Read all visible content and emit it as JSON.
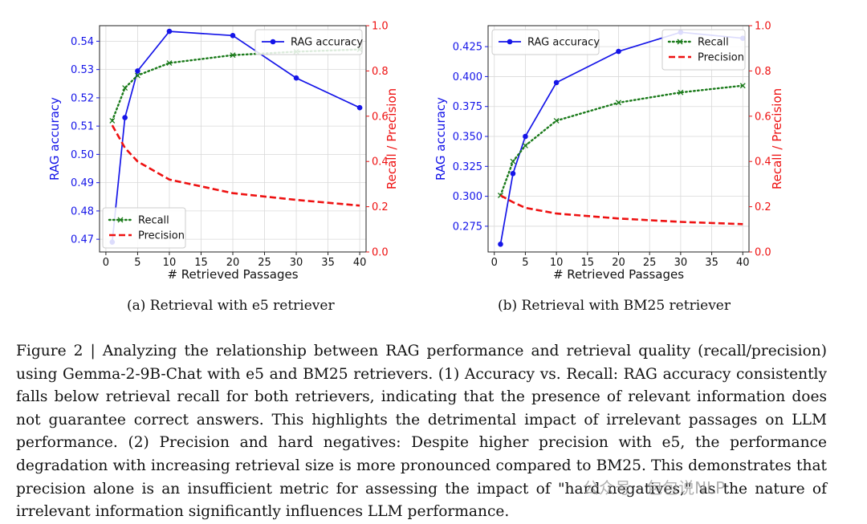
{
  "colors": {
    "acc": "#1515e8",
    "recall": "#1a7a1a",
    "precision": "#ee1111",
    "axis": "#222222"
  },
  "chart_data": [
    {
      "id": "e5",
      "type": "line",
      "subcaption": "(a)  Retrieval with e5 retriever",
      "xlabel": "# Retrieved Passages",
      "ylabel_left": "RAG accuracy",
      "ylabel_right": "Recall / Precision",
      "x_ticks": [
        0,
        5,
        10,
        15,
        20,
        25,
        30,
        35,
        40
      ],
      "x_ticks_text": [
        "0",
        "5",
        "10",
        "15",
        "20",
        "25",
        "30",
        "35",
        "40"
      ],
      "xlim": [
        -1,
        41
      ],
      "ylim_left": [
        0.4655,
        0.5455
      ],
      "y_ticks_left": [
        0.47,
        0.48,
        0.49,
        0.5,
        0.51,
        0.52,
        0.53,
        0.54
      ],
      "y_ticks_left_text": [
        "0.47",
        "0.48",
        "0.49",
        "0.50",
        "0.51",
        "0.52",
        "0.53",
        "0.54"
      ],
      "ylim_right": [
        0,
        1
      ],
      "y_ticks_right": [
        0,
        0.2,
        0.4,
        0.6,
        0.8,
        1.0
      ],
      "y_ticks_right_text": [
        "0.0",
        "0.2",
        "0.4",
        "0.6",
        "0.8",
        "1.0"
      ],
      "legend_left": {
        "position": "upper right",
        "entries": [
          "RAG accuracy"
        ]
      },
      "legend_right": {
        "position": "lower left",
        "entries": [
          "Recall",
          "Precision"
        ]
      },
      "series": [
        {
          "name": "RAG accuracy",
          "axis": "left",
          "style": "solid-dot",
          "x": [
            1,
            3,
            5,
            10,
            20,
            30,
            40
          ],
          "values": [
            0.469,
            0.513,
            0.5295,
            0.5435,
            0.542,
            0.527,
            0.5165
          ]
        },
        {
          "name": "Recall",
          "axis": "right",
          "style": "dotted-x",
          "x": [
            1,
            3,
            5,
            10,
            20,
            30,
            40
          ],
          "values": [
            0.58,
            0.725,
            0.78,
            0.835,
            0.87,
            0.885,
            0.895
          ]
        },
        {
          "name": "Precision",
          "axis": "right",
          "style": "dashed",
          "x": [
            1,
            3,
            5,
            10,
            20,
            30,
            40
          ],
          "values": [
            0.56,
            0.46,
            0.4,
            0.32,
            0.26,
            0.23,
            0.205
          ]
        }
      ]
    },
    {
      "id": "bm25",
      "type": "line",
      "subcaption": "(b)  Retrieval with BM25 retriever",
      "xlabel": "# Retrieved Passages",
      "ylabel_left": "RAG accuracy",
      "ylabel_right": "Recall / Precision",
      "x_ticks": [
        0,
        5,
        10,
        15,
        20,
        25,
        30,
        35,
        40
      ],
      "x_ticks_text": [
        "0",
        "5",
        "10",
        "15",
        "20",
        "25",
        "30",
        "35",
        "40"
      ],
      "xlim": [
        -1,
        41
      ],
      "ylim_left": [
        0.2535,
        0.4425
      ],
      "y_ticks_left": [
        0.275,
        0.3,
        0.325,
        0.35,
        0.375,
        0.4,
        0.425
      ],
      "y_ticks_left_text": [
        "0.275",
        "0.300",
        "0.325",
        "0.350",
        "0.375",
        "0.400",
        "0.425"
      ],
      "ylim_right": [
        0,
        1
      ],
      "y_ticks_right": [
        0,
        0.2,
        0.4,
        0.6,
        0.8,
        1.0
      ],
      "y_ticks_right_text": [
        "0.0",
        "0.2",
        "0.4",
        "0.6",
        "0.8",
        "1.0"
      ],
      "legend_left": {
        "position": "upper left",
        "entries": [
          "RAG accuracy"
        ]
      },
      "legend_right": {
        "position": "upper right",
        "entries": [
          "Recall",
          "Precision"
        ]
      },
      "series": [
        {
          "name": "RAG accuracy",
          "axis": "left",
          "style": "solid-dot",
          "x": [
            1,
            3,
            5,
            10,
            20,
            30,
            40
          ],
          "values": [
            0.26,
            0.319,
            0.35,
            0.395,
            0.421,
            0.437,
            0.432
          ]
        },
        {
          "name": "Recall",
          "axis": "right",
          "style": "dotted-x",
          "x": [
            1,
            3,
            5,
            10,
            20,
            30,
            40
          ],
          "values": [
            0.25,
            0.4,
            0.47,
            0.58,
            0.66,
            0.705,
            0.735
          ]
        },
        {
          "name": "Precision",
          "axis": "right",
          "style": "dashed",
          "x": [
            1,
            3,
            5,
            10,
            20,
            30,
            40
          ],
          "values": [
            0.25,
            0.22,
            0.195,
            0.17,
            0.148,
            0.133,
            0.123
          ]
        }
      ]
    }
  ],
  "caption": {
    "label": "Figure 2 | ",
    "text": "Analyzing the relationship between RAG performance and retrieval quality (recall/precision) using Gemma-2-9B-Chat with e5 and BM25 retrievers. (1) Accuracy vs. Recall: RAG accuracy consistently falls below retrieval recall for both retrievers, indicating that the presence of relevant information does not guarantee correct answers. This highlights the detrimental impact of irrelevant passages on LLM performance. (2) Precision and hard negatives: Despite higher precision with e5, the performance degradation with increasing retrieval size is more pronounced compared to BM25. This demonstrates that precision alone is an insufficient metric for assessing the impact of \"hard negatives,\" as the nature of irrelevant information significantly influences LLM performance."
  },
  "watermark": "公众号 · 包包说NLP"
}
